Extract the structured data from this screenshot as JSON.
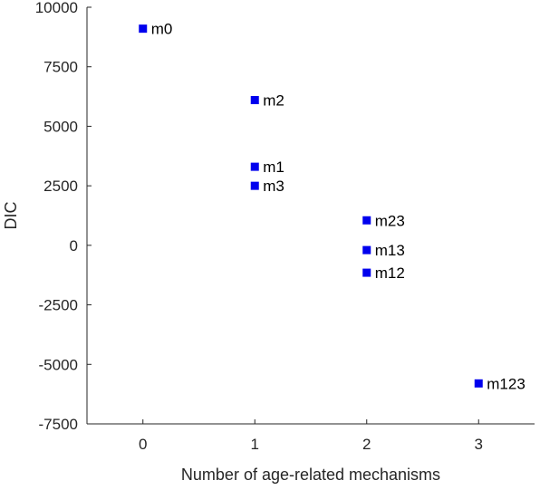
{
  "chart_data": {
    "type": "scatter",
    "xlabel": "Number of age-related mechanisms",
    "ylabel": "DIC",
    "xlim": [
      -0.5,
      3.5
    ],
    "ylim": [
      -7500,
      10000
    ],
    "xticks": [
      0,
      1,
      2,
      3
    ],
    "yticks": [
      -7500,
      -5000,
      -2500,
      0,
      2500,
      5000,
      7500,
      10000
    ],
    "grid": false,
    "marker_color": "#0000ee",
    "points": [
      {
        "x": 0,
        "y": 9100,
        "label": "m0"
      },
      {
        "x": 1,
        "y": 6100,
        "label": "m2"
      },
      {
        "x": 1,
        "y": 3300,
        "label": "m1"
      },
      {
        "x": 1,
        "y": 2500,
        "label": "m3"
      },
      {
        "x": 2,
        "y": 1050,
        "label": "m23"
      },
      {
        "x": 2,
        "y": -200,
        "label": "m13"
      },
      {
        "x": 2,
        "y": -1150,
        "label": "m12"
      },
      {
        "x": 3,
        "y": -5800,
        "label": "m123"
      }
    ]
  }
}
